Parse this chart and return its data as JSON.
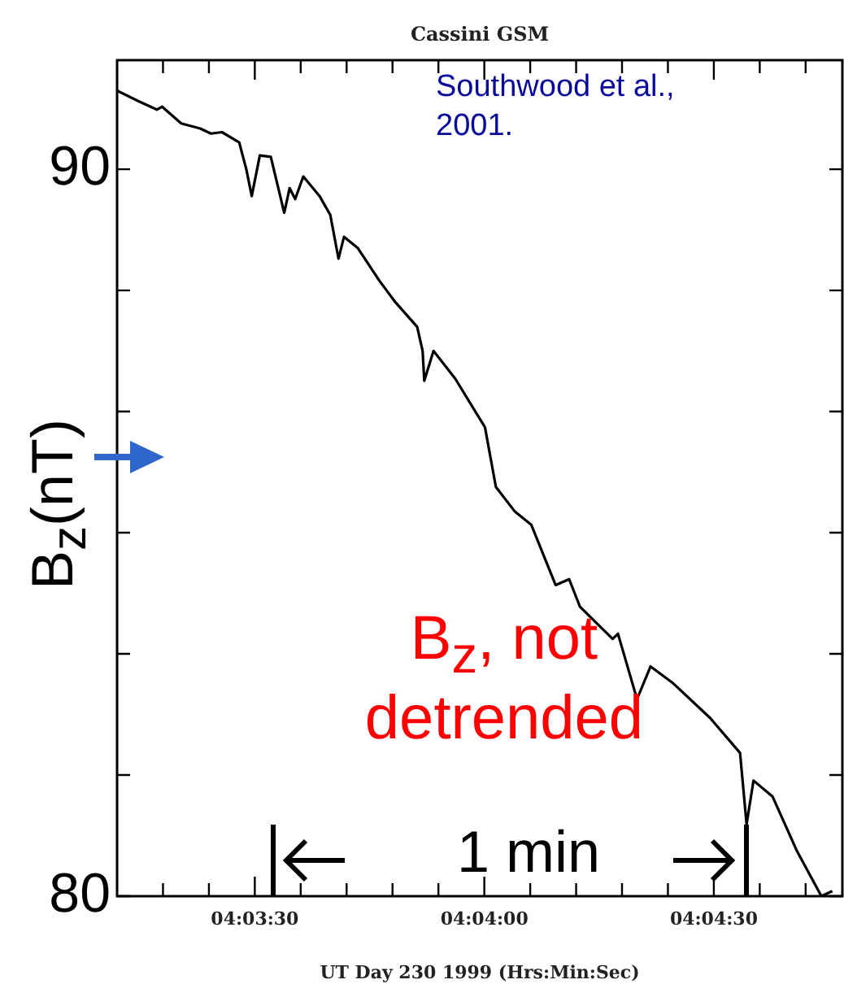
{
  "chart_data": {
    "type": "line",
    "title": "Cassini GSM",
    "xlabel": "UT Day 230 1999 (Hrs:Min:Sec)",
    "ylabel": "B$_{z}$(nT)",
    "annotations": [
      "Southwood et al., 2001.",
      "B$_{z}$, not detrended",
      "1 min"
    ],
    "x": [
      4.053333,
      4.054083,
      4.054775,
      4.054969,
      4.055661,
      4.056347,
      4.056744,
      4.057139,
      4.057766,
      4.058025,
      4.058222,
      4.058516,
      4.058914,
      4.059402,
      4.059597,
      4.0598,
      4.060094,
      4.060686,
      4.061075,
      4.061372,
      4.061572,
      4.062064,
      4.06285,
      4.063439,
      4.06423,
      4.064427,
      4.064486,
      4.064822,
      4.065608,
      4.066691,
      4.067086,
      4.067777,
      4.068369,
      4.069255,
      4.069747,
      4.070141,
      4.071325,
      4.071519,
      4.072211,
      4.0727,
      4.073486,
      4.074869,
      4.075952,
      4.076189,
      4.076441,
      4.077133,
      4.078019,
      4.078905,
      4.079302
    ],
    "series": [
      {
        "color": "#000000",
        "values": [
          91.08,
          90.94,
          90.82,
          90.86,
          90.63,
          90.56,
          90.49,
          90.51,
          90.37,
          90.0,
          89.63,
          90.19,
          90.17,
          89.4,
          89.74,
          89.59,
          89.9,
          89.63,
          89.37,
          88.77,
          89.07,
          88.92,
          88.47,
          88.17,
          87.83,
          87.5,
          87.09,
          87.5,
          87.12,
          86.45,
          85.63,
          85.29,
          85.11,
          84.28,
          84.36,
          83.98,
          83.54,
          83.61,
          82.71,
          83.16,
          82.94,
          82.45,
          81.97,
          80.99,
          81.59,
          81.37,
          80.62,
          80.0,
          80.07
        ]
      }
    ],
    "xlim": [
      4.053333,
      4.079667
    ],
    "xticks": [
      {
        "value": 4.055,
        "label": null
      },
      {
        "value": 4.056667,
        "label": null
      },
      {
        "value": 4.058333,
        "label": "04:03:30"
      },
      {
        "value": 4.06,
        "label": null
      },
      {
        "value": 4.061667,
        "label": null
      },
      {
        "value": 4.063333,
        "label": null
      },
      {
        "value": 4.065,
        "label": null
      },
      {
        "value": 4.066667,
        "label": "04:04:00"
      },
      {
        "value": 4.068333,
        "label": null
      },
      {
        "value": 4.07,
        "label": null
      },
      {
        "value": 4.071667,
        "label": null
      },
      {
        "value": 4.073333,
        "label": null
      },
      {
        "value": 4.075,
        "label": "04:04:30"
      },
      {
        "value": 4.076667,
        "label": null
      },
      {
        "value": 4.078333,
        "label": null
      }
    ],
    "ylim": [
      80,
      91.5
    ],
    "yticks": [
      80,
      {
        "value": 81.667,
        "label": null
      },
      {
        "value": 83.333,
        "label": null
      },
      {
        "value": 85,
        "label": null
      },
      {
        "value": 86.667,
        "label": null
      },
      {
        "value": 88.333,
        "label": null
      },
      90
    ],
    "grid": false,
    "legend": false,
    "marker": "none",
    "line_style": "solid"
  }
}
